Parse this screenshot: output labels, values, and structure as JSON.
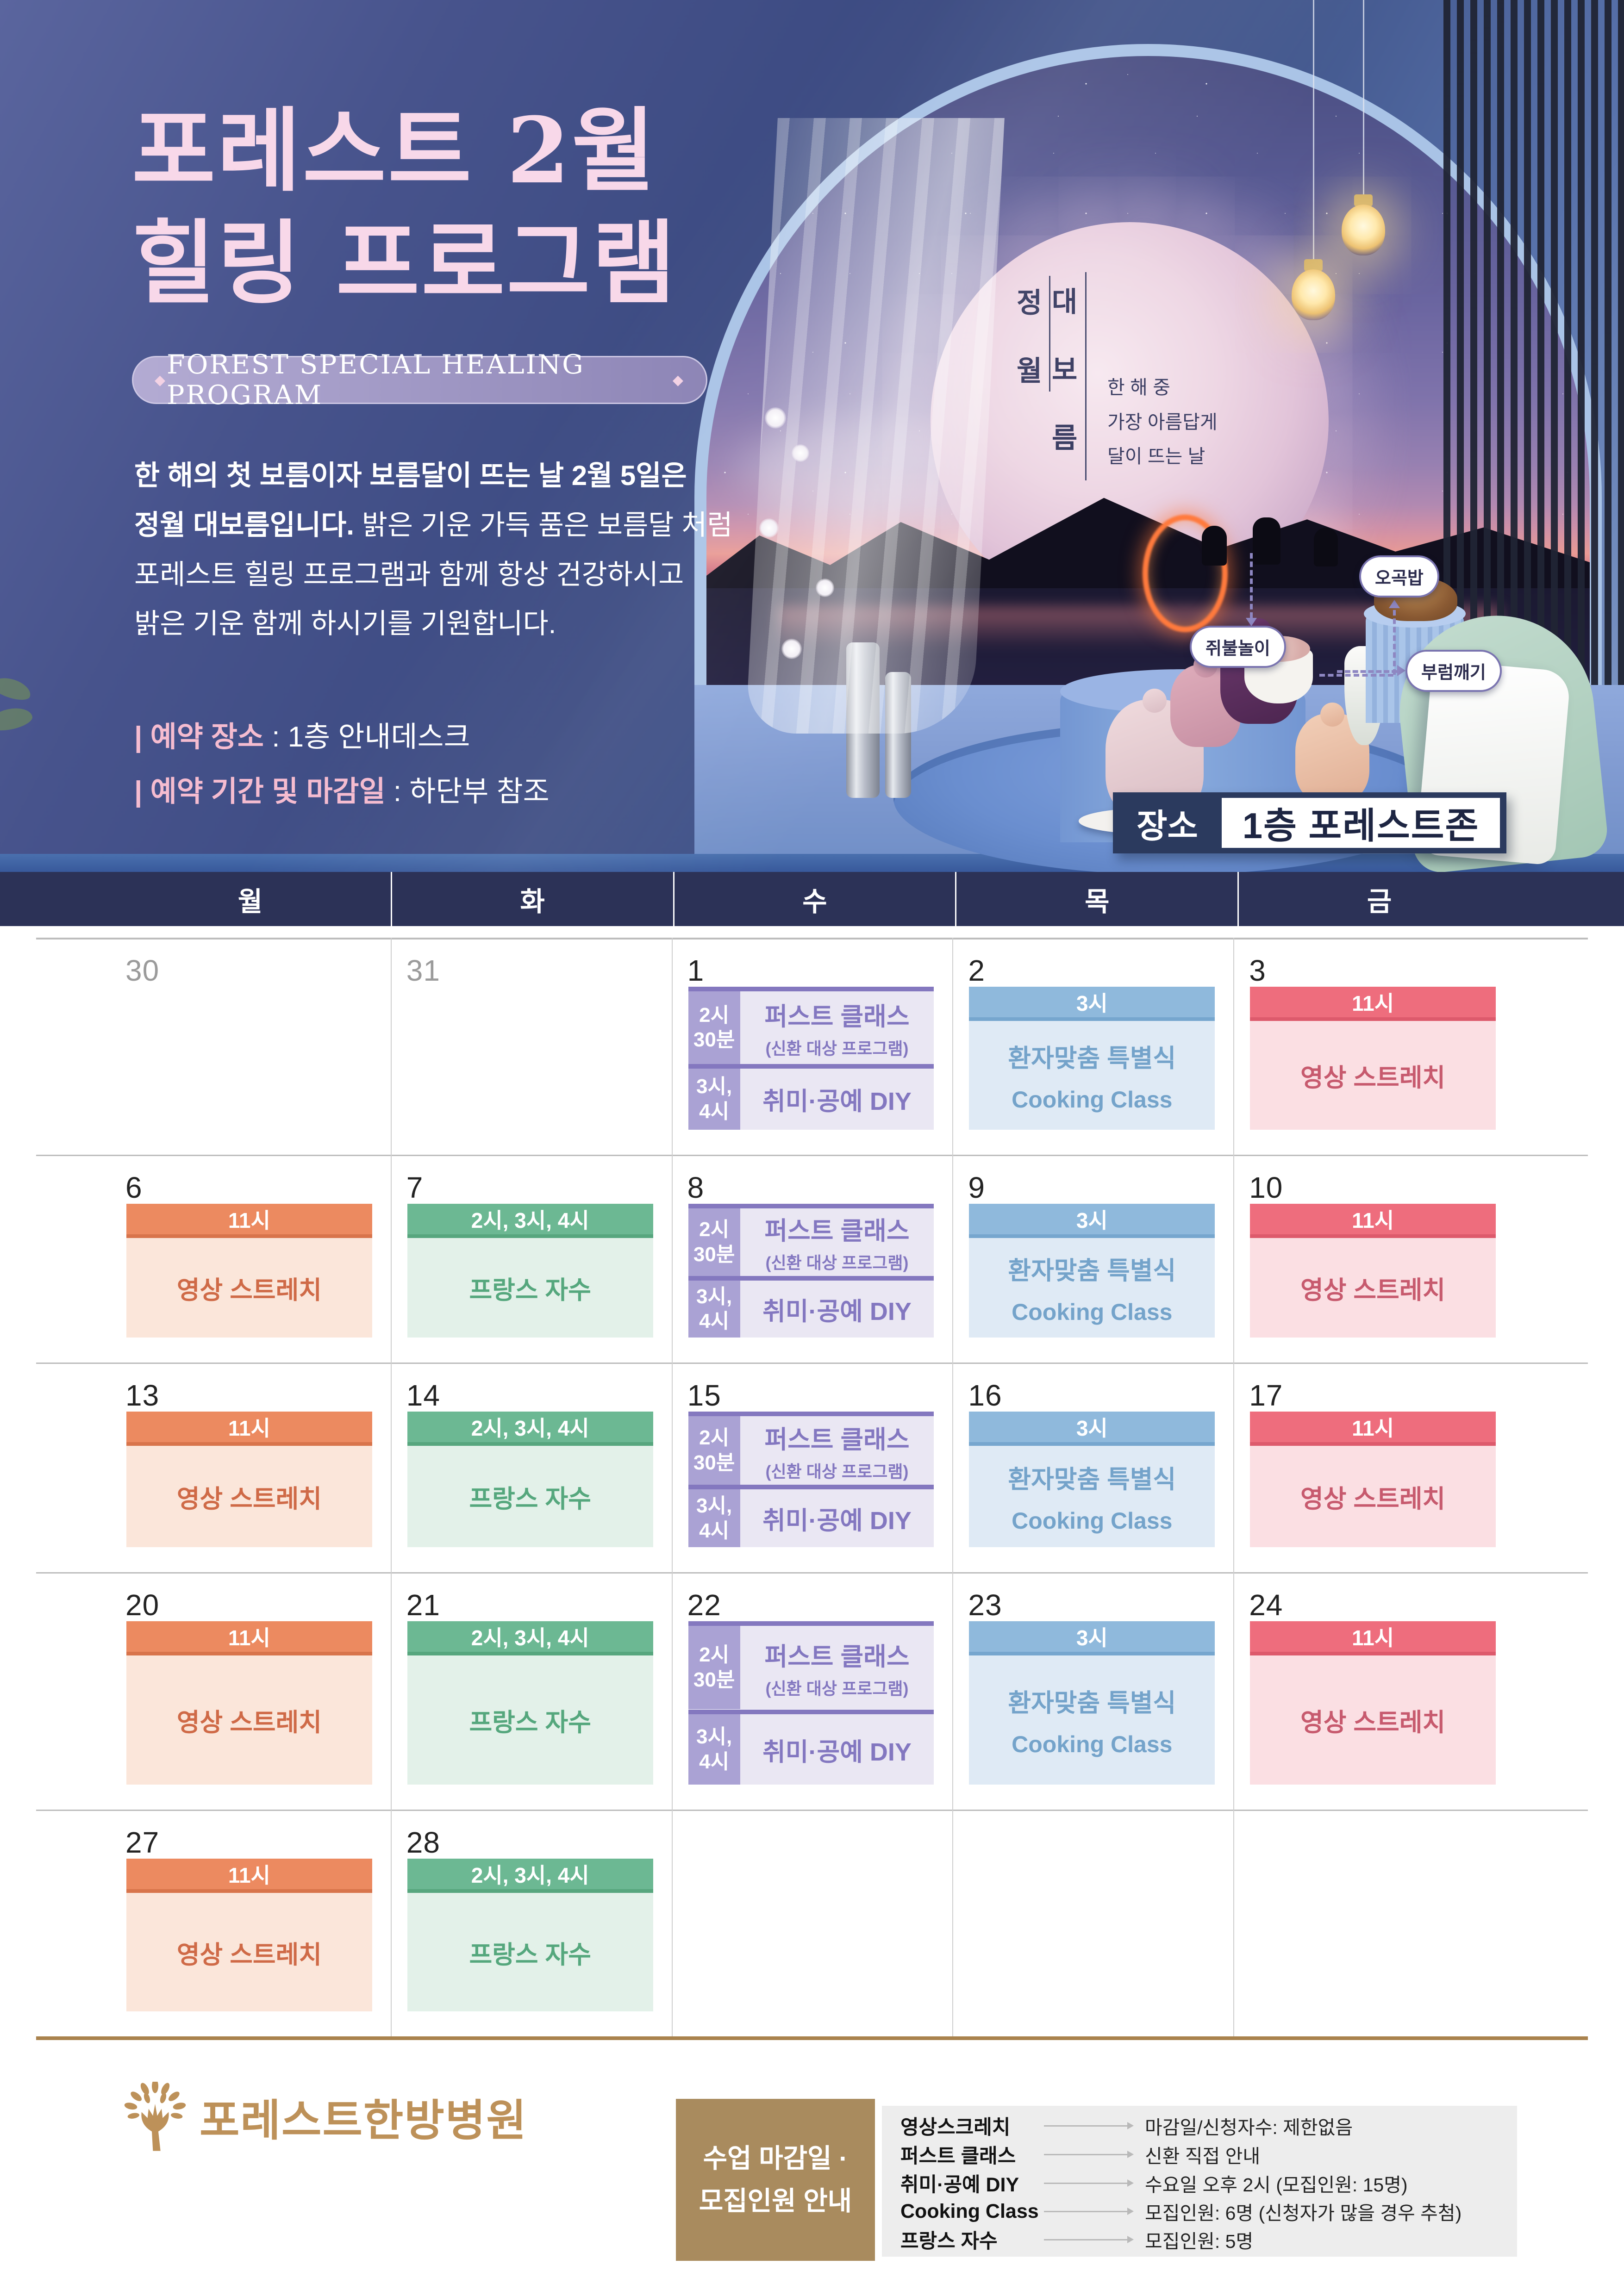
{
  "colors": {
    "accent_navy": "#2c3257",
    "brown": "#bd9159",
    "rule_brown": "#a9824d",
    "title_pink": "#f8d8e9",
    "label_pink": "#f5bcd0",
    "mon_header": "#ec8a60",
    "mon_border": "#d8744b",
    "mon_body": "#fbe6da",
    "mon_text": "#cf6a47",
    "tue_header": "#6cb893",
    "tue_border": "#57a67e",
    "tue_body": "#e3f1e9",
    "tue_text": "#55a77d",
    "wed_accent": "#8478bf",
    "wed_side": "#aaa2d4",
    "wed_body": "#eae7f3",
    "wed_text": "#8377c0",
    "thu_header": "#8fb9dc",
    "thu_border": "#76a6ce",
    "thu_body": "#dfeaf5",
    "thu_text": "#74a3ca",
    "fri_header": "#ee6d7d",
    "fri_border": "#dd5a6c",
    "fri_body": "#fbdfe3",
    "fri_text": "#c75a6e"
  },
  "hero": {
    "title_line1": "포레스트 2월",
    "title_line2": "힐링 프로그램",
    "subtitle": "FOREST SPECIAL HEALING PROGRAM",
    "subtitle_diamond": "◆",
    "intro": {
      "line1_bold": "한 해의 첫 보름이자 보름달이 뜨는 날 2월 5일은",
      "line2_bold": "정월 대보름입니다.",
      "line2_rest": " 밝은 기운 가득 품은 보름달 처럼",
      "line3": "포레스트 힐링 프로그램과 함께 항상 건강하시고",
      "line4": "밝은 기운 함께 하시기를 기원합니다."
    },
    "booking": [
      {
        "label": "| 예약 장소",
        "value": " : 1층 안내데스크"
      },
      {
        "label": "| 예약 기간 및 마감일",
        "value": " : 하단부 참조"
      }
    ],
    "moon": {
      "vertical_left": "정월",
      "vertical_right": "대보름",
      "tagline": [
        "한 해 중",
        "가장 아름답게",
        "달이 뜨는 날"
      ]
    },
    "scene_labels": [
      "쥐불놀이",
      "오곡밥",
      "부럼깨기"
    ],
    "place_badge": {
      "label": "장소",
      "value": "1층 포레스트존"
    }
  },
  "calendar": {
    "day_headers": [
      "월",
      "화",
      "수",
      "목",
      "금"
    ],
    "programs": {
      "mon": {
        "type": "simple",
        "time": "11시",
        "title": "영상 스트레치"
      },
      "tue": {
        "type": "simple",
        "time": "2시, 3시, 4시",
        "title": "프랑스 자수"
      },
      "wed": {
        "type": "double",
        "blocks": [
          {
            "time": [
              "2시",
              "30분"
            ],
            "title": "퍼스트 클래스",
            "subtitle": "(신환 대상 프로그램)"
          },
          {
            "time": [
              "3시,",
              "4시"
            ],
            "title": "취미·공예 DIY"
          }
        ]
      },
      "thu": {
        "type": "simple",
        "time": "3시",
        "title": "환자맞춤 특별식",
        "title2": "Cooking Class"
      },
      "fri": {
        "type": "simple",
        "time": "11시",
        "title": "영상 스트레치"
      }
    },
    "weeks": [
      [
        {
          "date": "30",
          "muted": true
        },
        {
          "date": "31",
          "muted": true
        },
        {
          "date": "1",
          "program": "wed"
        },
        {
          "date": "2",
          "program": "thu"
        },
        {
          "date": "3",
          "program": "fri"
        }
      ],
      [
        {
          "date": "6",
          "program": "mon"
        },
        {
          "date": "7",
          "program": "tue"
        },
        {
          "date": "8",
          "program": "wed"
        },
        {
          "date": "9",
          "program": "thu"
        },
        {
          "date": "10",
          "program": "fri"
        }
      ],
      [
        {
          "date": "13",
          "program": "mon"
        },
        {
          "date": "14",
          "program": "tue"
        },
        {
          "date": "15",
          "program": "wed"
        },
        {
          "date": "16",
          "program": "thu"
        },
        {
          "date": "17",
          "program": "fri"
        }
      ],
      [
        {
          "date": "20",
          "program": "mon"
        },
        {
          "date": "21",
          "program": "tue"
        },
        {
          "date": "22",
          "program": "wed"
        },
        {
          "date": "23",
          "program": "thu"
        },
        {
          "date": "24",
          "program": "fri"
        }
      ],
      [
        {
          "date": "27",
          "program": "mon"
        },
        {
          "date": "28",
          "program": "tue"
        },
        {},
        {},
        {}
      ]
    ]
  },
  "footer": {
    "logo_text": "포레스트한방병원",
    "legend_title_line1": "수업 마감일 ·",
    "legend_title_line2": "모집인원 안내",
    "legend_items": [
      {
        "label": "영상스크레치",
        "value": "마감일/신청자수: 제한없음"
      },
      {
        "label": "퍼스트 클래스",
        "value": "신환 직접 안내"
      },
      {
        "label": "취미·공예 DIY",
        "value": "수요일 오후 2시 (모집인원: 15명)"
      },
      {
        "label": "Cooking Class",
        "value": "모집인원: 6명 (신청자가 많을 경우 추첨)"
      },
      {
        "label": "프랑스 자수",
        "value": "모집인원: 5명"
      }
    ]
  }
}
